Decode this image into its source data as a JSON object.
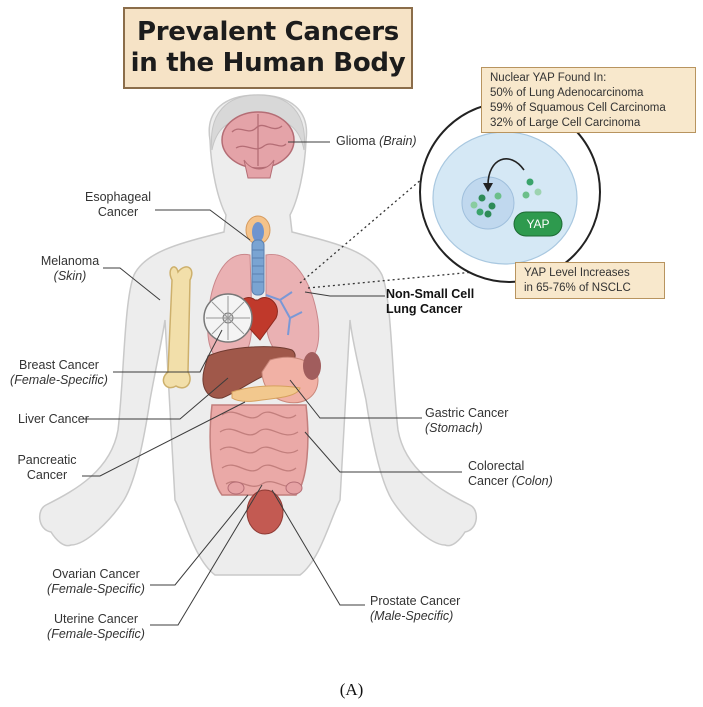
{
  "title": {
    "line1": "Prevalent Cancers",
    "line2": "in the Human Body"
  },
  "labels": {
    "glioma": {
      "main": "Glioma ",
      "sub": "(Brain)"
    },
    "esophageal": {
      "line1": "Esophageal",
      "line2": "Cancer"
    },
    "melanoma": {
      "line1": "Melanoma",
      "line2": "(Skin)"
    },
    "breast": {
      "line1": "Breast Cancer",
      "line2": "(Female-Specific)"
    },
    "liver": {
      "line1": "Liver Cancer"
    },
    "pancreatic": {
      "line1": "Pancreatic",
      "line2": "Cancer"
    },
    "ovarian": {
      "line1": "Ovarian Cancer",
      "line2": "(Female-Specific)"
    },
    "uterine": {
      "line1": "Uterine Cancer",
      "line2": "(Female-Specific)"
    },
    "nsclc": {
      "line1": "Non-Small Cell",
      "line2": "Lung Cancer"
    },
    "gastric": {
      "line1": "Gastric Cancer",
      "line2": "(Stomach)"
    },
    "colorectal": {
      "line1": "Colorectal",
      "line2a": "Cancer ",
      "line2b": "(Colon)"
    },
    "prostate": {
      "line1": "Prostate Cancer",
      "line2": "(Male-Specific)"
    }
  },
  "yap_nuclear_note": {
    "line1": "Nuclear YAP Found In:",
    "line2": "50% of Lung Adenocarcinoma",
    "line3": "59% of Squamous Cell Carcinoma",
    "line4": "32% of Large Cell Carcinoma"
  },
  "yap_level_note": {
    "line1": "YAP Level Increases",
    "line2": "in 65-76% of NSCLC"
  },
  "yap_badge": "YAP",
  "figure_label": "(A)",
  "colors": {
    "title_fill": "#f6e3c6",
    "title_border": "#8b6d4a",
    "body": "#eeeeee",
    "organ_pink": "#e6a2a4",
    "liver": "#a0584a",
    "trachea": "#7aa4d2",
    "cell": "#cfe4f3",
    "yap_green": "#2e9a4e"
  }
}
